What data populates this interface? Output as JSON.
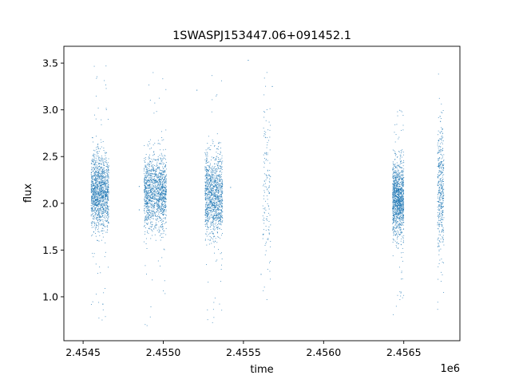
{
  "chart_data": {
    "type": "scatter",
    "title": "1SWASPJ153447.06+091452.1",
    "xlabel": "time",
    "ylabel": "flux",
    "x_offset_label": "1e6",
    "xlim": [
      2.45438,
      2.45685
    ],
    "ylim": [
      0.53,
      3.68
    ],
    "x_ticks": [
      2.4545,
      2.455,
      2.4555,
      2.456,
      2.4565
    ],
    "x_tick_labels": [
      "2.4545",
      "2.4550",
      "2.4555",
      "2.4560",
      "2.4565"
    ],
    "y_ticks": [
      1.0,
      1.5,
      2.0,
      2.5,
      3.0,
      3.5
    ],
    "y_tick_labels": [
      "1.0",
      "1.5",
      "2.0",
      "2.5",
      "3.0",
      "3.5"
    ],
    "grid": false,
    "color": "#1f77b4",
    "observing_seasons": [
      {
        "x_start": 2.45455,
        "x_end": 2.45466,
        "flux_center": 2.12,
        "flux_spread": 0.2,
        "flux_min": 0.68,
        "flux_max": 3.48,
        "relative_density": 1.0
      },
      {
        "x_start": 2.45488,
        "x_end": 2.45502,
        "flux_center": 2.12,
        "flux_spread": 0.19,
        "flux_min": 0.69,
        "flux_max": 3.42,
        "relative_density": 1.0
      },
      {
        "x_start": 2.45526,
        "x_end": 2.45537,
        "flux_center": 2.08,
        "flux_spread": 0.22,
        "flux_min": 0.72,
        "flux_max": 3.5,
        "relative_density": 0.85
      },
      {
        "x_start": 2.45562,
        "x_end": 2.45567,
        "flux_center": 2.2,
        "flux_spread": 0.45,
        "flux_min": 0.97,
        "flux_max": 3.56,
        "relative_density": 0.1
      },
      {
        "x_start": 2.45643,
        "x_end": 2.4565,
        "flux_center": 2.06,
        "flux_spread": 0.2,
        "flux_min": 0.75,
        "flux_max": 3.02,
        "relative_density": 0.9
      },
      {
        "x_start": 2.45671,
        "x_end": 2.45675,
        "flux_center": 2.12,
        "flux_spread": 0.35,
        "flux_min": 0.86,
        "flux_max": 3.42,
        "relative_density": 0.3
      }
    ],
    "sparse_points": [
      {
        "x": 2.45485,
        "y": 2.18
      },
      {
        "x": 2.45485,
        "y": 1.93
      },
      {
        "x": 2.45521,
        "y": 3.21
      },
      {
        "x": 2.45542,
        "y": 2.17
      },
      {
        "x": 2.45553,
        "y": 3.53
      },
      {
        "x": 2.45561,
        "y": 1.24
      },
      {
        "x": 2.45568,
        "y": 3.25
      }
    ]
  }
}
